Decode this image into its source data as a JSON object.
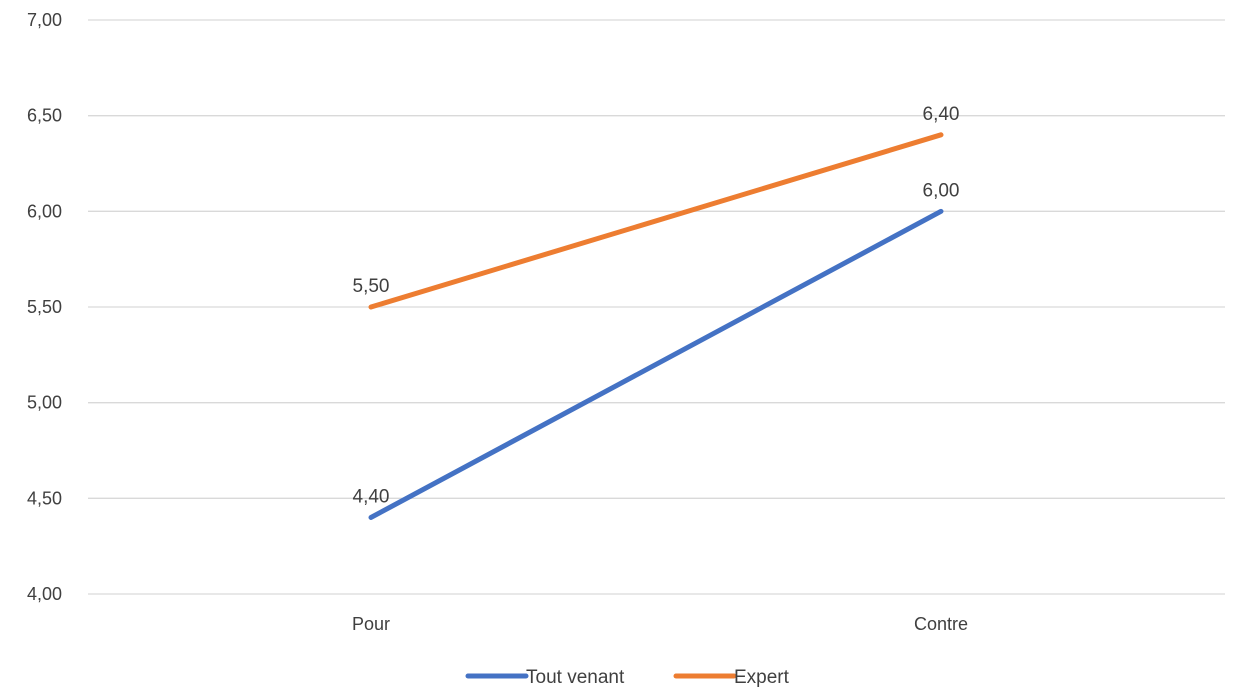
{
  "chart_data": {
    "type": "line",
    "title": "",
    "xlabel": "",
    "ylabel": "",
    "categories": [
      "Pour",
      "Contre"
    ],
    "series": [
      {
        "name": "Tout venant",
        "values": [
          4.4,
          6.0
        ],
        "labels": [
          "4,40",
          "6,00"
        ],
        "color": "#4472C4"
      },
      {
        "name": "Expert",
        "values": [
          5.5,
          6.4
        ],
        "labels": [
          "5,50",
          "6,40"
        ],
        "color": "#ED7D31"
      }
    ],
    "ylim": [
      4.0,
      7.0
    ],
    "yticks": [
      4.0,
      4.5,
      5.0,
      5.5,
      6.0,
      6.5,
      7.0
    ],
    "ytick_labels": [
      "4,00",
      "4,50",
      "5,00",
      "5,50",
      "6,00",
      "6,50",
      "7,00"
    ],
    "grid": true,
    "gridline_color": "#D9D9D9",
    "legend_position": "bottom"
  }
}
